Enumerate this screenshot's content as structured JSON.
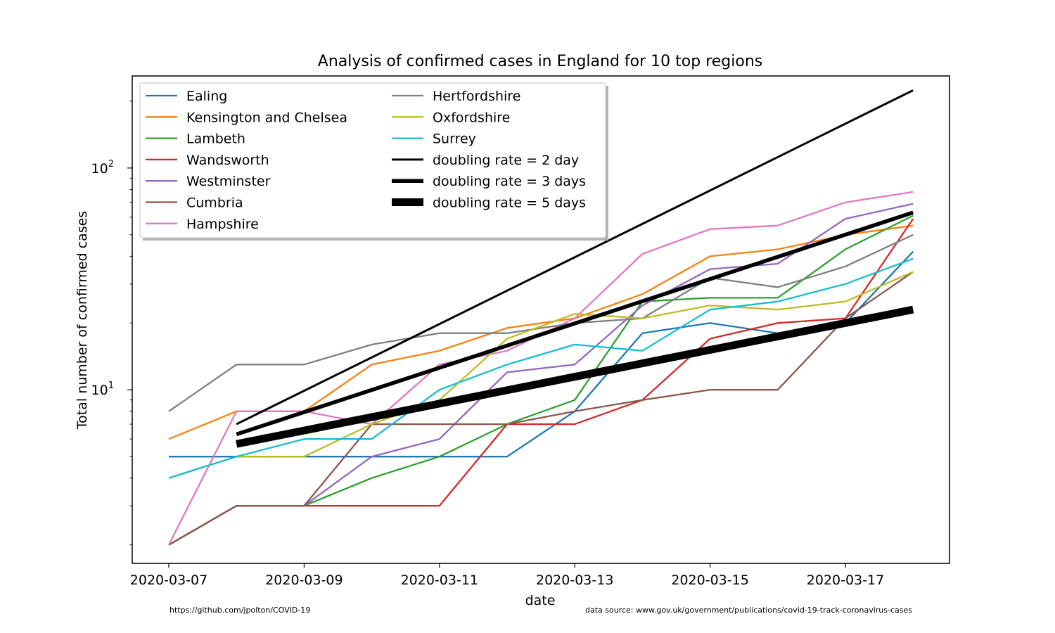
{
  "chart_data": {
    "type": "line",
    "title": "Analysis of confirmed cases in England for 10 top regions",
    "xlabel": "date",
    "ylabel": "Total number of confirmed cases",
    "yscale": "log",
    "ylim": [
      1.65,
      260
    ],
    "x_dates": [
      "2020-03-07",
      "2020-03-08",
      "2020-03-09",
      "2020-03-10",
      "2020-03-11",
      "2020-03-12",
      "2020-03-13",
      "2020-03-14",
      "2020-03-15",
      "2020-03-16",
      "2020-03-17",
      "2020-03-18"
    ],
    "xticks": [
      "2020-03-07",
      "2020-03-09",
      "2020-03-11",
      "2020-03-13",
      "2020-03-15",
      "2020-03-17"
    ],
    "yticks": [
      {
        "value": 10,
        "base": "10",
        "exp": "1"
      },
      {
        "value": 100,
        "base": "10",
        "exp": "2"
      }
    ],
    "legend_placement": "top-left",
    "grid": false,
    "series": [
      {
        "name": "Ealing",
        "color": "#1f77b4",
        "values": [
          5,
          5,
          5,
          5,
          5,
          5,
          8,
          18,
          20,
          18,
          20,
          42
        ]
      },
      {
        "name": "Kensington and Chelsea",
        "color": "#ff7f0e",
        "values": [
          6,
          8,
          8,
          13,
          15,
          19,
          21,
          27,
          40,
          43,
          50,
          55
        ]
      },
      {
        "name": "Lambeth",
        "color": "#2ca02c",
        "values": [
          2,
          3,
          3,
          4,
          5,
          7,
          9,
          25,
          26,
          26,
          43,
          61
        ]
      },
      {
        "name": "Wandsworth",
        "color": "#d62728",
        "values": [
          2,
          3,
          3,
          3,
          3,
          7,
          7,
          9,
          17,
          20,
          21,
          59
        ]
      },
      {
        "name": "Westminster",
        "color": "#9467bd",
        "values": [
          2,
          3,
          3,
          5,
          6,
          12,
          13,
          24,
          35,
          37,
          59,
          69
        ]
      },
      {
        "name": "Cumbria",
        "color": "#8c564b",
        "values": [
          2,
          3,
          3,
          7,
          7,
          7,
          8,
          9,
          10,
          10,
          21,
          34
        ]
      },
      {
        "name": "Hampshire",
        "color": "#e377c2",
        "values": [
          2,
          8,
          8,
          7,
          13,
          15,
          21,
          41,
          53,
          55,
          70,
          78
        ]
      },
      {
        "name": "Hertfordshire",
        "color": "#7f7f7f",
        "values": [
          8,
          13,
          13,
          16,
          18,
          18,
          20,
          21,
          32,
          29,
          36,
          50
        ]
      },
      {
        "name": "Oxfordshire",
        "color": "#bcbd22",
        "values": [
          4,
          5,
          5,
          7,
          9,
          17,
          22,
          21,
          24,
          23,
          25,
          34
        ]
      },
      {
        "name": "Surrey",
        "color": "#17becf",
        "values": [
          4,
          5,
          6,
          6,
          10,
          13,
          16,
          15,
          23,
          25,
          30,
          39
        ]
      }
    ],
    "reference_lines": [
      {
        "name": "doubling rate = 2 day",
        "color": "#000000",
        "weight": "thin",
        "start_index": 1,
        "start_value": 7,
        "end_index": 11,
        "end_value": 224
      },
      {
        "name": "doubling rate = 3 days",
        "color": "#000000",
        "weight": "medium",
        "start_index": 1,
        "start_value": 6.3,
        "end_index": 11,
        "end_value": 63
      },
      {
        "name": "doubling rate = 5 days",
        "color": "#000000",
        "weight": "thick",
        "start_index": 1,
        "start_value": 5.7,
        "end_index": 11,
        "end_value": 23
      }
    ]
  },
  "footnotes": {
    "left": "https://github.com/jpolton/COVID-19",
    "right": "data source: www.gov.uk/government/publications/covid-19-track-coronavirus-cases"
  }
}
